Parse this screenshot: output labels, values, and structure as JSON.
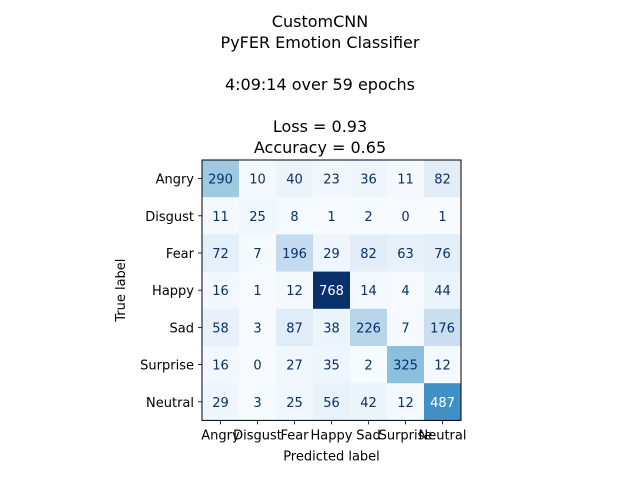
{
  "chart_data": {
    "type": "heatmap",
    "title_lines": [
      "CustomCNN",
      "PyFER Emotion Classifier",
      "",
      "4:09:14 over 59 epochs",
      "",
      "Loss = 0.93",
      "Accuracy = 0.65"
    ],
    "xlabel": "Predicted label",
    "ylabel": "True label",
    "x_categories": [
      "Angry",
      "Disgust",
      "Fear",
      "Happy",
      "Sad",
      "Surprise",
      "Neutral"
    ],
    "y_categories": [
      "Angry",
      "Disgust",
      "Fear",
      "Happy",
      "Sad",
      "Surprise",
      "Neutral"
    ],
    "matrix": [
      [
        290,
        10,
        40,
        23,
        36,
        11,
        82
      ],
      [
        11,
        25,
        8,
        1,
        2,
        0,
        1
      ],
      [
        72,
        7,
        196,
        29,
        82,
        63,
        76
      ],
      [
        16,
        1,
        12,
        768,
        14,
        4,
        44
      ],
      [
        58,
        3,
        87,
        38,
        226,
        7,
        176
      ],
      [
        16,
        0,
        27,
        35,
        2,
        325,
        12
      ],
      [
        29,
        3,
        25,
        56,
        42,
        12,
        487
      ]
    ],
    "value_range": [
      0,
      768
    ],
    "colormap": "Blues",
    "grid": false,
    "text_color_dark": "#08306b",
    "text_color_light": "#ffffff"
  }
}
